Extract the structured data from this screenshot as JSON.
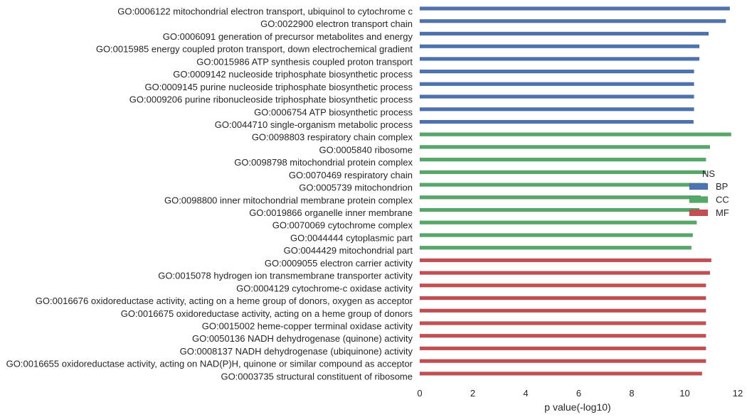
{
  "chart_data": {
    "type": "bar",
    "orientation": "horizontal",
    "title": "",
    "xlabel": "p value(-log10)",
    "ylabel": "",
    "xlim": [
      0,
      12
    ],
    "xticks": [
      0,
      2,
      4,
      6,
      8,
      10,
      12
    ],
    "grid": false,
    "legend": {
      "title": "NS",
      "position": "right",
      "entries": [
        {
          "label": "BP",
          "color": "#4c72b0"
        },
        {
          "label": "CC",
          "color": "#55a868"
        },
        {
          "label": "MF",
          "color": "#c44e52"
        }
      ]
    },
    "categories": [
      "GO:0006122 mitochondrial electron transport, ubiquinol to cytochrome c",
      "GO:0022900 electron transport chain",
      "GO:0006091 generation of precursor metabolites and energy",
      "GO:0015985 energy coupled proton transport, down electrochemical gradient",
      "GO:0015986 ATP synthesis coupled proton transport",
      "GO:0009142 nucleoside triphosphate biosynthetic process",
      "GO:0009145 purine nucleoside triphosphate biosynthetic process",
      "GO:0009206 purine ribonucleoside triphosphate biosynthetic process",
      "GO:0006754 ATP biosynthetic process",
      "GO:0044710 single-organism metabolic process",
      "GO:0098803 respiratory chain complex",
      "GO:0005840 ribosome",
      "GO:0098798 mitochondrial protein complex",
      "GO:0070469 respiratory chain",
      "GO:0005739 mitochondrion",
      "GO:0098800 inner mitochondrial membrane protein complex",
      "GO:0019866 organelle inner membrane",
      "GO:0070069 cytochrome complex",
      "GO:0044444 cytoplasmic part",
      "GO:0044429 mitochondrial part",
      "GO:0009055 electron carrier activity",
      "GO:0015078 hydrogen ion transmembrane transporter activity",
      "GO:0004129 cytochrome-c oxidase activity",
      "GO:0016676 oxidoreductase activity, acting on a heme group of donors, oxygen as acceptor",
      "GO:0016675 oxidoreductase activity, acting on a heme group of donors",
      "GO:0015002 heme-copper terminal oxidase activity",
      "GO:0050136 NADH dehydrogenase (quinone) activity",
      "GO:0008137 NADH dehydrogenase (ubiquinone) activity",
      "GO:0016655 oxidoreductase activity, acting on NAD(P)H, quinone or similar compound as acceptor",
      "GO:0003735 structural constituent of ribosome"
    ],
    "series": [
      {
        "name": "BP",
        "color": "#4c72b0",
        "values": [
          11.7,
          11.55,
          10.9,
          10.55,
          10.55,
          10.35,
          10.35,
          10.35,
          10.35,
          10.33,
          null,
          null,
          null,
          null,
          null,
          null,
          null,
          null,
          null,
          null,
          null,
          null,
          null,
          null,
          null,
          null,
          null,
          null,
          null,
          null
        ]
      },
      {
        "name": "CC",
        "color": "#55a868",
        "values": [
          null,
          null,
          null,
          null,
          null,
          null,
          null,
          null,
          null,
          null,
          11.75,
          10.95,
          10.8,
          10.8,
          10.8,
          10.6,
          10.55,
          10.45,
          10.3,
          10.25,
          null,
          null,
          null,
          null,
          null,
          null,
          null,
          null,
          null,
          null
        ]
      },
      {
        "name": "MF",
        "color": "#c44e52",
        "values": [
          null,
          null,
          null,
          null,
          null,
          null,
          null,
          null,
          null,
          null,
          null,
          null,
          null,
          null,
          null,
          null,
          null,
          null,
          null,
          null,
          11.0,
          10.95,
          10.8,
          10.8,
          10.8,
          10.8,
          10.8,
          10.8,
          10.8,
          10.65
        ]
      }
    ]
  }
}
